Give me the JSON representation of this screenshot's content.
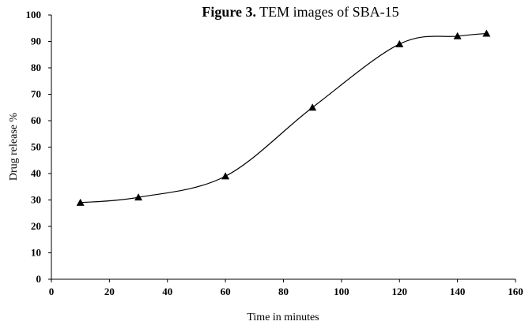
{
  "chart_data": {
    "type": "line",
    "title_prefix": "Figure 3.",
    "title_text": " TEM images of SBA-15",
    "xlabel": "Time in minutes",
    "ylabel": "Drug release %",
    "xlim": [
      0,
      160
    ],
    "ylim": [
      0,
      100
    ],
    "x_ticks": [
      0,
      20,
      40,
      60,
      80,
      100,
      120,
      140,
      160
    ],
    "y_ticks": [
      0,
      10,
      20,
      30,
      40,
      50,
      60,
      70,
      80,
      90,
      100
    ],
    "grid": false,
    "smooth": true,
    "marker": "triangle",
    "color": "#000000",
    "series": [
      {
        "x": [
          10,
          30,
          60,
          90,
          120,
          140,
          150
        ],
        "y": [
          29,
          31,
          39,
          65,
          89,
          92,
          93
        ]
      }
    ]
  }
}
